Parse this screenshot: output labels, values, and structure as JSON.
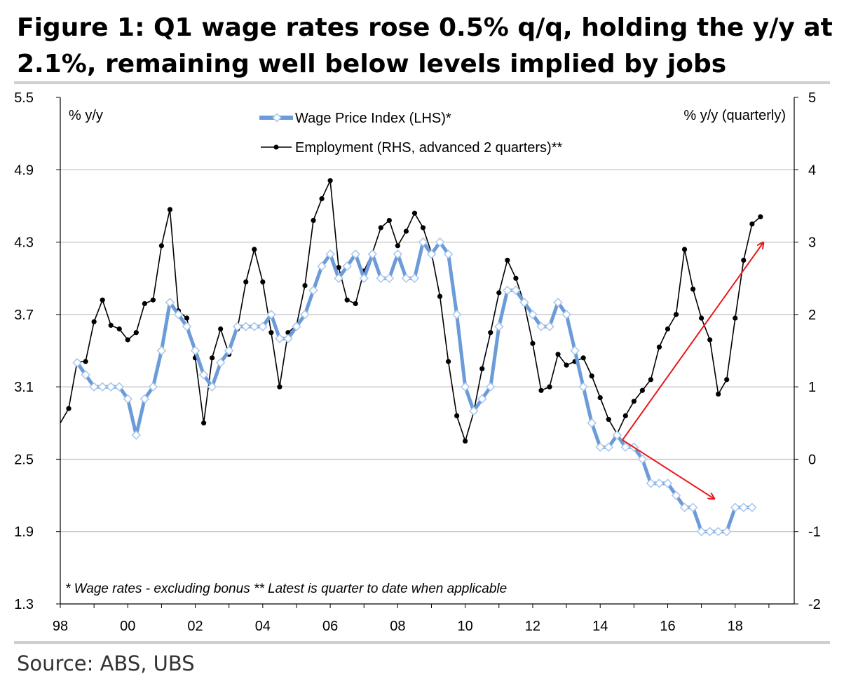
{
  "title": "Figure 1: Q1 wage rates rose 0.5% q/q, holding the y/y at 2.1%, remaining well below  levels implied by jobs",
  "source": "Source:   ABS, UBS",
  "chart_data": {
    "type": "line",
    "left_axis_label": "% y/y",
    "right_axis_label": "% y/y (quarterly)",
    "left_ylim": [
      1.3,
      5.5
    ],
    "left_ticks": [
      "5.5",
      "4.9",
      "4.3",
      "3.7",
      "3.1",
      "2.5",
      "1.9",
      "1.3"
    ],
    "right_ylim": [
      -2,
      5
    ],
    "right_ticks": [
      "5",
      "4",
      "3",
      "2",
      "1",
      "0",
      "-1",
      "-2"
    ],
    "x_ticks": [
      "98",
      "00",
      "02",
      "04",
      "06",
      "08",
      "10",
      "12",
      "14",
      "16",
      "18"
    ],
    "footnote": "* Wage rates - excluding bonus ** Latest is quarter to date when applicable",
    "colors": {
      "wpi": "#6b9bd8",
      "wpi_marker": "#a9c6ec",
      "employment": "#000000",
      "arrow": "#e8191c",
      "grid": "#b3b3b3"
    },
    "series": [
      {
        "name": "Wage Price Index (LHS)*",
        "axis": "left",
        "start": 1998.5,
        "step": 0.25,
        "values": [
          3.3,
          3.2,
          3.1,
          3.1,
          3.1,
          3.1,
          3.0,
          2.7,
          3.0,
          3.1,
          3.4,
          3.8,
          3.7,
          3.6,
          3.4,
          3.2,
          3.1,
          3.3,
          3.4,
          3.6,
          3.6,
          3.6,
          3.6,
          3.7,
          3.5,
          3.5,
          3.6,
          3.7,
          3.9,
          4.1,
          4.2,
          4.0,
          4.1,
          4.2,
          4.0,
          4.2,
          4.0,
          4.0,
          4.2,
          4.0,
          4.0,
          4.3,
          4.2,
          4.3,
          4.2,
          3.7,
          3.1,
          2.9,
          3.0,
          3.1,
          3.6,
          3.9,
          3.9,
          3.8,
          3.7,
          3.6,
          3.6,
          3.8,
          3.7,
          3.4,
          3.1,
          2.8,
          2.6,
          2.6,
          2.7,
          2.6,
          2.6,
          2.5,
          2.3,
          2.3,
          2.3,
          2.2,
          2.1,
          2.1,
          1.9,
          1.9,
          1.9,
          1.9,
          2.1,
          2.1,
          2.1
        ]
      },
      {
        "name": "Employment (RHS, advanced 2 quarters)**",
        "axis": "right",
        "start": 1998.0,
        "step": 0.25,
        "values": [
          0.5,
          0.7,
          1.35,
          1.35,
          1.9,
          2.2,
          1.85,
          1.8,
          1.65,
          1.75,
          2.15,
          2.2,
          2.95,
          3.45,
          2.05,
          1.95,
          1.4,
          0.5,
          1.4,
          1.8,
          1.45,
          1.8,
          2.45,
          2.9,
          2.45,
          1.75,
          1.0,
          1.75,
          1.85,
          2.4,
          3.3,
          3.6,
          3.85,
          2.65,
          2.2,
          2.15,
          2.6,
          2.85,
          3.2,
          3.3,
          2.95,
          3.15,
          3.4,
          3.2,
          2.85,
          2.25,
          1.35,
          0.6,
          0.25,
          0.65,
          1.25,
          1.75,
          2.3,
          2.75,
          2.5,
          2.15,
          1.6,
          0.95,
          1.0,
          1.45,
          1.3,
          1.35,
          1.4,
          1.15,
          0.85,
          0.55,
          0.35,
          0.6,
          0.8,
          0.95,
          1.1,
          1.55,
          1.8,
          2.0,
          2.9,
          2.35,
          1.95,
          1.65,
          0.9,
          1.1,
          1.95,
          2.75,
          3.25,
          3.35
        ]
      }
    ]
  }
}
